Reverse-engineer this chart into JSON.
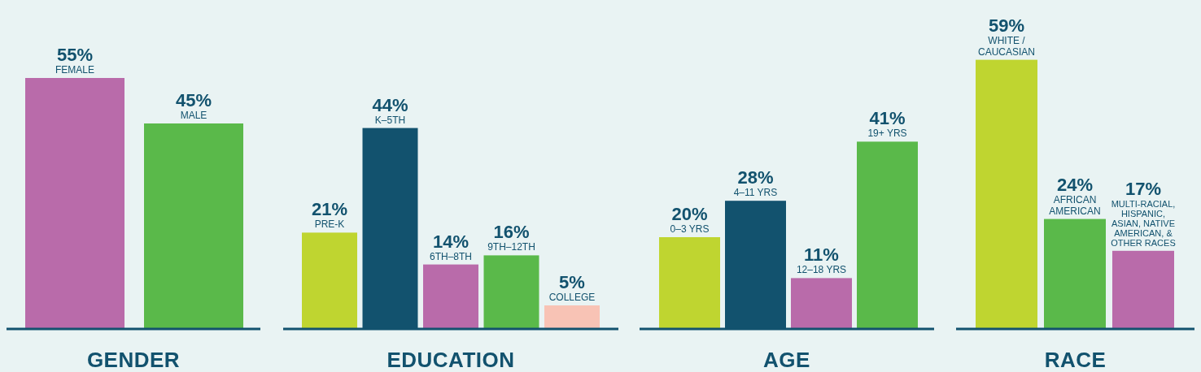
{
  "chart_data": [
    {
      "type": "bar",
      "title": "GENDER",
      "categories": [
        "FEMALE",
        "MALE"
      ],
      "values": [
        55,
        45
      ],
      "value_labels": [
        "55%",
        "45%"
      ],
      "colors": [
        "#b96baa",
        "#5ab94a"
      ]
    },
    {
      "type": "bar",
      "title": "EDUCATION",
      "categories": [
        "PRE-K",
        "K–5TH",
        "6TH–8TH",
        "9TH–12TH",
        "COLLEGE"
      ],
      "values": [
        21,
        44,
        14,
        16,
        5
      ],
      "value_labels": [
        "21%",
        "44%",
        "14%",
        "16%",
        "5%"
      ],
      "colors": [
        "#bfd530",
        "#12526e",
        "#b96baa",
        "#5ab94a",
        "#f8c3b5"
      ]
    },
    {
      "type": "bar",
      "title": "AGE",
      "categories": [
        "0–3 YRS",
        "4–11 YRS",
        "12–18 YRS",
        "19+ YRS"
      ],
      "values": [
        20,
        28,
        11,
        41
      ],
      "value_labels": [
        "20%",
        "28%",
        "11%",
        "41%"
      ],
      "colors": [
        "#bfd530",
        "#12526e",
        "#b96baa",
        "#5ab94a"
      ]
    },
    {
      "type": "bar",
      "title": "RACE",
      "categories": [
        "WHITE / CAUCASIAN",
        "AFRICAN AMERICAN",
        "MULTI-RACIAL, HISPANIC, ASIAN, NATIVE AMERICAN, & OTHER RACES"
      ],
      "values": [
        59,
        24,
        17
      ],
      "value_labels": [
        "59%",
        "24%",
        "17%"
      ],
      "colors": [
        "#bfd530",
        "#5ab94a",
        "#b96baa"
      ]
    }
  ]
}
